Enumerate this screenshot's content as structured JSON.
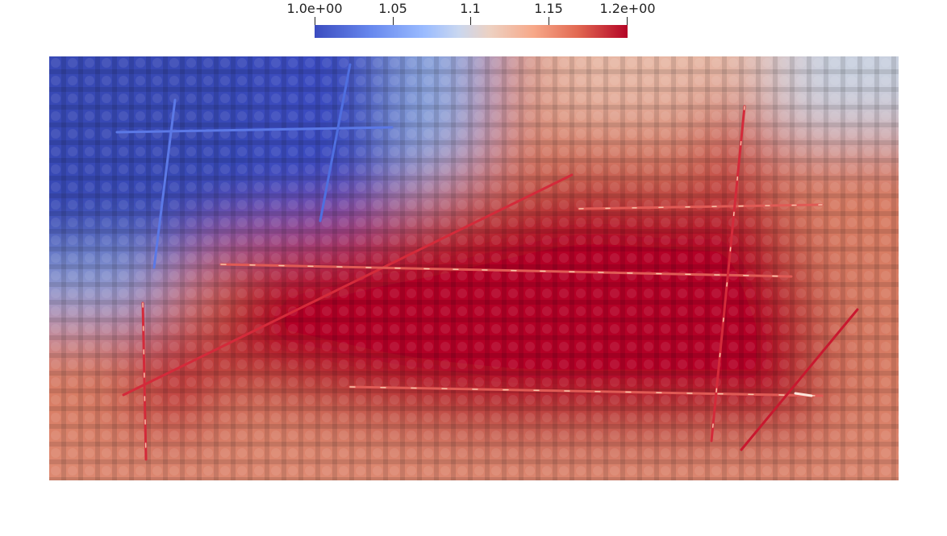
{
  "colorbar": {
    "ticks": [
      "1.0e+00",
      "1.05",
      "1.1",
      "1.15",
      "1.2e+00"
    ],
    "colormap": "cool-to-warm",
    "colors": {
      "min": "#3b4cc0",
      "mid": "#dddddd",
      "max": "#b40426"
    }
  }
}
